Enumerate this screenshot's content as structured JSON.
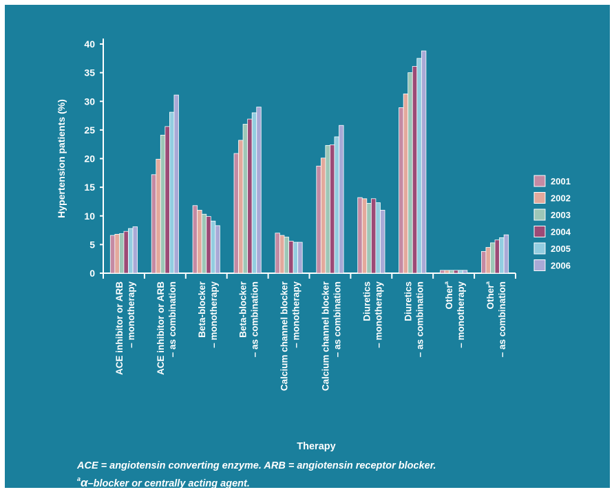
{
  "chart_data": {
    "type": "bar",
    "xlabel": "Therapy",
    "ylabel": "Hypertension patients (%)",
    "ylim": [
      0,
      40
    ],
    "yticks": [
      0,
      5,
      10,
      15,
      20,
      25,
      30,
      35,
      40
    ],
    "grid": false,
    "legend_position": "right",
    "categories": [
      {
        "line1": "ACE inhibitor or ARB",
        "line2": "– monotherapy",
        "sup": ""
      },
      {
        "line1": "ACE inhibitor or ARB",
        "line2": "– as combination",
        "sup": ""
      },
      {
        "line1": "Beta-blocker",
        "line2": "– monotherapy",
        "sup": ""
      },
      {
        "line1": "Beta-blocker",
        "line2": "– as combination",
        "sup": ""
      },
      {
        "line1": "Calcium channel blocker",
        "line2": "– monotherapy",
        "sup": ""
      },
      {
        "line1": "Calcium channel blocker",
        "line2": "– as combination",
        "sup": ""
      },
      {
        "line1": "Diuretics",
        "line2": "– monotherapy",
        "sup": ""
      },
      {
        "line1": "Diuretics",
        "line2": "– as combination",
        "sup": ""
      },
      {
        "line1": "Other",
        "line2": "– monotherapy",
        "sup": "a"
      },
      {
        "line1": "Other",
        "line2": "– as combination",
        "sup": "a"
      }
    ],
    "series": [
      {
        "name": "2001",
        "color": "#c48aa3",
        "values": [
          6.6,
          17.2,
          11.8,
          20.9,
          7.0,
          18.7,
          13.2,
          28.9,
          0.5,
          3.8
        ]
      },
      {
        "name": "2002",
        "color": "#e3a99c",
        "values": [
          6.8,
          19.9,
          11.0,
          23.2,
          6.6,
          20.1,
          13.0,
          31.3,
          0.5,
          4.5
        ]
      },
      {
        "name": "2003",
        "color": "#9dc7b7",
        "values": [
          6.9,
          24.1,
          10.3,
          26.0,
          6.3,
          22.3,
          12.2,
          35.0,
          0.5,
          5.3
        ]
      },
      {
        "name": "2004",
        "color": "#9c4a76",
        "values": [
          7.3,
          25.6,
          9.9,
          26.9,
          5.6,
          22.4,
          13.0,
          36.1,
          0.5,
          5.8
        ]
      },
      {
        "name": "2005",
        "color": "#93cde0",
        "values": [
          7.8,
          28.1,
          9.1,
          28.0,
          5.4,
          23.8,
          12.3,
          37.5,
          0.5,
          6.2
        ]
      },
      {
        "name": "2006",
        "color": "#a9a9d6",
        "values": [
          8.1,
          31.1,
          8.3,
          29.0,
          5.4,
          25.8,
          11.0,
          38.8,
          0.5,
          6.7
        ]
      }
    ]
  },
  "footnotes": {
    "line1": "ACE = angiotensin converting enzyme. ARB = angiotensin receptor blocker.",
    "line2_sup": "a",
    "line2_symbol": "α",
    "line2_text": "–blocker or centrally acting agent."
  }
}
